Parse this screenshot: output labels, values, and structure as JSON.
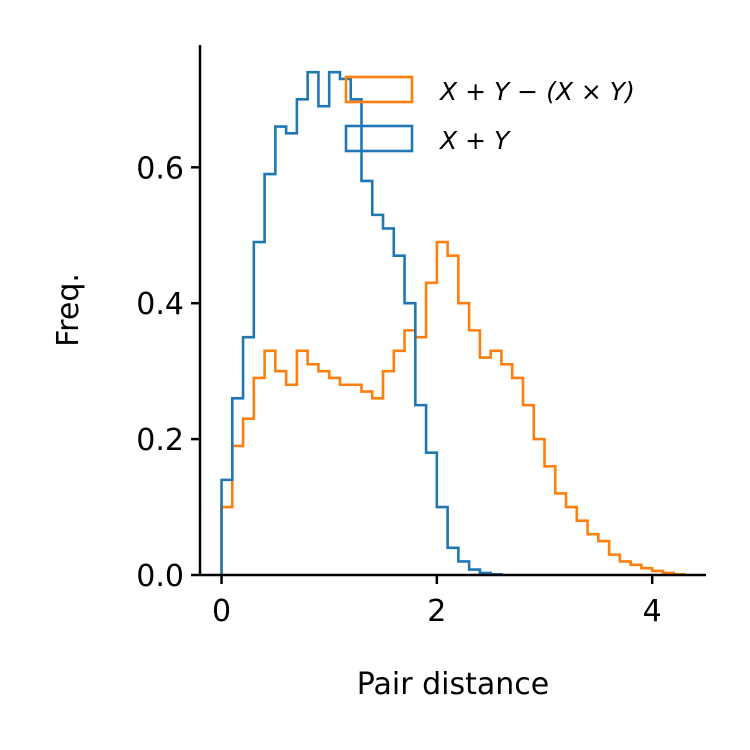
{
  "chart_data": {
    "type": "histogram-step",
    "xlabel": "Pair distance",
    "ylabel": "Freq.",
    "xlim": [
      -0.2,
      4.5
    ],
    "ylim": [
      0,
      0.78
    ],
    "xticks": [
      0,
      2,
      4
    ],
    "xtick_labels": [
      "0",
      "2",
      "4"
    ],
    "yticks": [
      0.0,
      0.2,
      0.4,
      0.6
    ],
    "ytick_labels": [
      "0.0",
      "0.2",
      "0.4",
      "0.6"
    ],
    "legend_position": "top-right",
    "grid": false,
    "bin_width": 0.1,
    "series": [
      {
        "name": "X + Y − (X × Y)",
        "color": "#ff7f0e",
        "x_start": 0.0,
        "values": [
          0.1,
          0.19,
          0.23,
          0.29,
          0.33,
          0.3,
          0.28,
          0.33,
          0.31,
          0.3,
          0.29,
          0.28,
          0.28,
          0.27,
          0.26,
          0.3,
          0.33,
          0.36,
          0.35,
          0.43,
          0.49,
          0.47,
          0.4,
          0.36,
          0.32,
          0.33,
          0.31,
          0.29,
          0.25,
          0.2,
          0.16,
          0.12,
          0.1,
          0.08,
          0.06,
          0.05,
          0.03,
          0.02,
          0.015,
          0.01,
          0.006,
          0.003,
          0.001
        ]
      },
      {
        "name": "X + Y",
        "color": "#1f77b4",
        "x_start": 0.0,
        "values": [
          0.14,
          0.26,
          0.35,
          0.49,
          0.59,
          0.66,
          0.65,
          0.7,
          0.74,
          0.69,
          0.74,
          0.73,
          0.7,
          0.58,
          0.53,
          0.51,
          0.47,
          0.4,
          0.25,
          0.18,
          0.1,
          0.04,
          0.02,
          0.008,
          0.003,
          0.001
        ]
      }
    ],
    "legend": [
      {
        "label": "X + Y − (X × Y)",
        "color": "#ff7f0e"
      },
      {
        "label": "X + Y",
        "color": "#1f77b4"
      }
    ]
  }
}
